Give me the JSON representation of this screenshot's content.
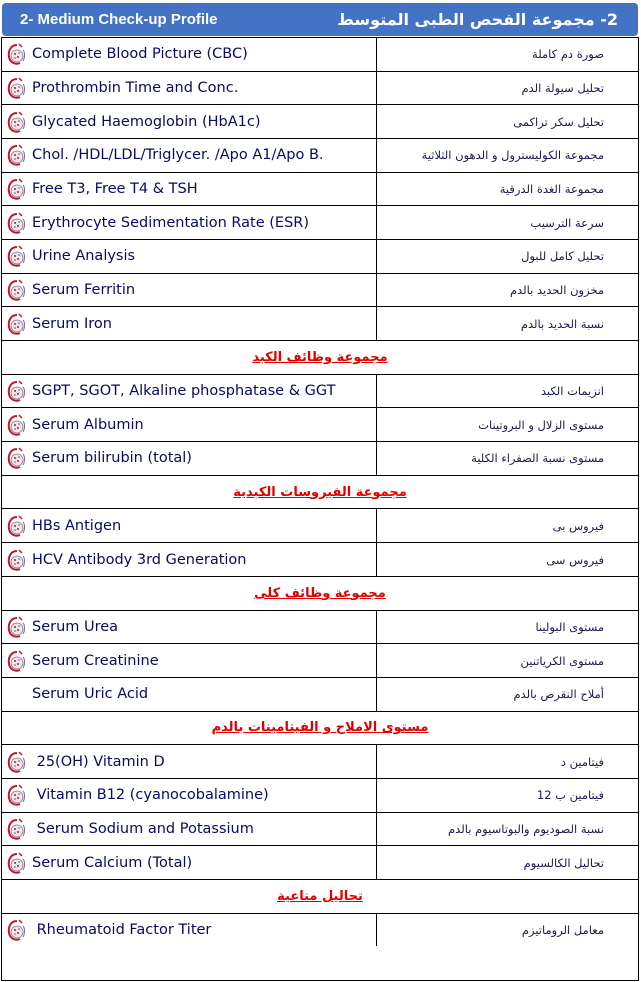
{
  "header": {
    "title_en": "2- Medium Check-up Profile",
    "title_ar": "2- مجموعة الفحص الطبى المتوسط"
  },
  "colors": {
    "header_bg": "#4472c4",
    "section_text": "#e00000",
    "text": "#0a0a60"
  },
  "rows": [
    {
      "type": "item",
      "en": "Complete Blood Picture (CBC)",
      "ar": "صورة دم كاملة",
      "icon": "blood-cell-logo-icon"
    },
    {
      "type": "item",
      "en": "Prothrombin Time and Conc.",
      "ar": "تحليل سيولة الدم",
      "icon": "blood-cell-logo-icon"
    },
    {
      "type": "item",
      "en": "Glycated Haemoglobin (HbA1c)",
      "ar": "تحليل سكر تراكمى",
      "icon": "blood-cell-logo-icon"
    },
    {
      "type": "item",
      "en": "Chol. /HDL/LDL/Triglycer. /Apo A1/Apo B.",
      "ar": "مجموعة الكوليسترول و الدهون الثلاثية",
      "icon": "blood-cell-logo-icon"
    },
    {
      "type": "item",
      "en": "Free T3, Free T4 & TSH",
      "ar": "مجموعة الغدة الدرقية",
      "icon": "blood-cell-logo-icon"
    },
    {
      "type": "item",
      "en": "Erythrocyte Sedimentation Rate (ESR)",
      "ar": "سرعة الترسيب",
      "icon": "blood-cell-logo-icon"
    },
    {
      "type": "item",
      "en": "Urine Analysis",
      "ar": "تحليل كامل للبول",
      "icon": "blood-cell-logo-icon"
    },
    {
      "type": "item",
      "en": "Serum Ferritin",
      "ar": "مخزون الحديد بالدم",
      "icon": "blood-cell-logo-icon"
    },
    {
      "type": "item",
      "en": "Serum Iron",
      "ar": "نسبة الحديد بالدم",
      "icon": "blood-cell-logo-icon"
    },
    {
      "type": "section",
      "ar": "مجموعة وظائف الكبد"
    },
    {
      "type": "item",
      "en": "SGPT, SGOT, Alkaline phosphatase & GGT",
      "ar": "انزيمات الكبد",
      "icon": "blood-cell-logo-icon"
    },
    {
      "type": "item",
      "en": "Serum Albumin",
      "ar": "مستوى الزلال و البروتينات",
      "icon": "blood-cell-logo-icon"
    },
    {
      "type": "item",
      "en": "Serum bilirubin (total)",
      "ar": "مستوى نسبة الصفراء الكلية",
      "icon": "blood-cell-logo-icon"
    },
    {
      "type": "section",
      "ar": "مجموعة الفيروسات الكبدية"
    },
    {
      "type": "item",
      "en": "HBs Antigen",
      "ar": "فيروس بى",
      "icon": "blood-cell-logo-icon"
    },
    {
      "type": "item",
      "en": "HCV Antibody 3rd Generation",
      "ar": "فيروس سى",
      "icon": "blood-cell-logo-icon"
    },
    {
      "type": "section",
      "ar": "مجموعة وظائف كلى"
    },
    {
      "type": "item",
      "en": "Serum Urea",
      "ar": "مستوى البولينا",
      "icon": "blood-cell-logo-icon"
    },
    {
      "type": "item",
      "en": "Serum Creatinine",
      "ar": "مستوى الكرياتنين",
      "icon": "blood-cell-logo-icon"
    },
    {
      "type": "item",
      "en": "Serum Uric Acid",
      "ar": "أملاح النقرص بالدم",
      "icon": ""
    },
    {
      "type": "section",
      "ar": "مستوى الاملاح و الفيتامينات بالدم"
    },
    {
      "type": "item",
      "en": " 25(OH) Vitamin D",
      "ar": "فيتامين د",
      "icon": "blood-cell-logo-icon"
    },
    {
      "type": "item",
      "en": " Vitamin B12 (cyanocobalamine)",
      "ar": "فيتامين ب 12",
      "icon": "blood-cell-logo-icon"
    },
    {
      "type": "item",
      "en": " Serum Sodium and Potassium",
      "ar": "نسبة الصوديوم والبوتاسيوم بالدم",
      "icon": "blood-cell-logo-icon"
    },
    {
      "type": "item",
      "en": "Serum Calcium (Total)",
      "ar": "تحاليل الكالسيوم",
      "icon": "blood-cell-logo-icon"
    },
    {
      "type": "section",
      "ar": "تحاليل مناعية"
    },
    {
      "type": "item",
      "en": " Rheumatoid Factor Titer",
      "ar": "معامل الروماتيزم",
      "icon": "blood-cell-logo-icon"
    }
  ]
}
